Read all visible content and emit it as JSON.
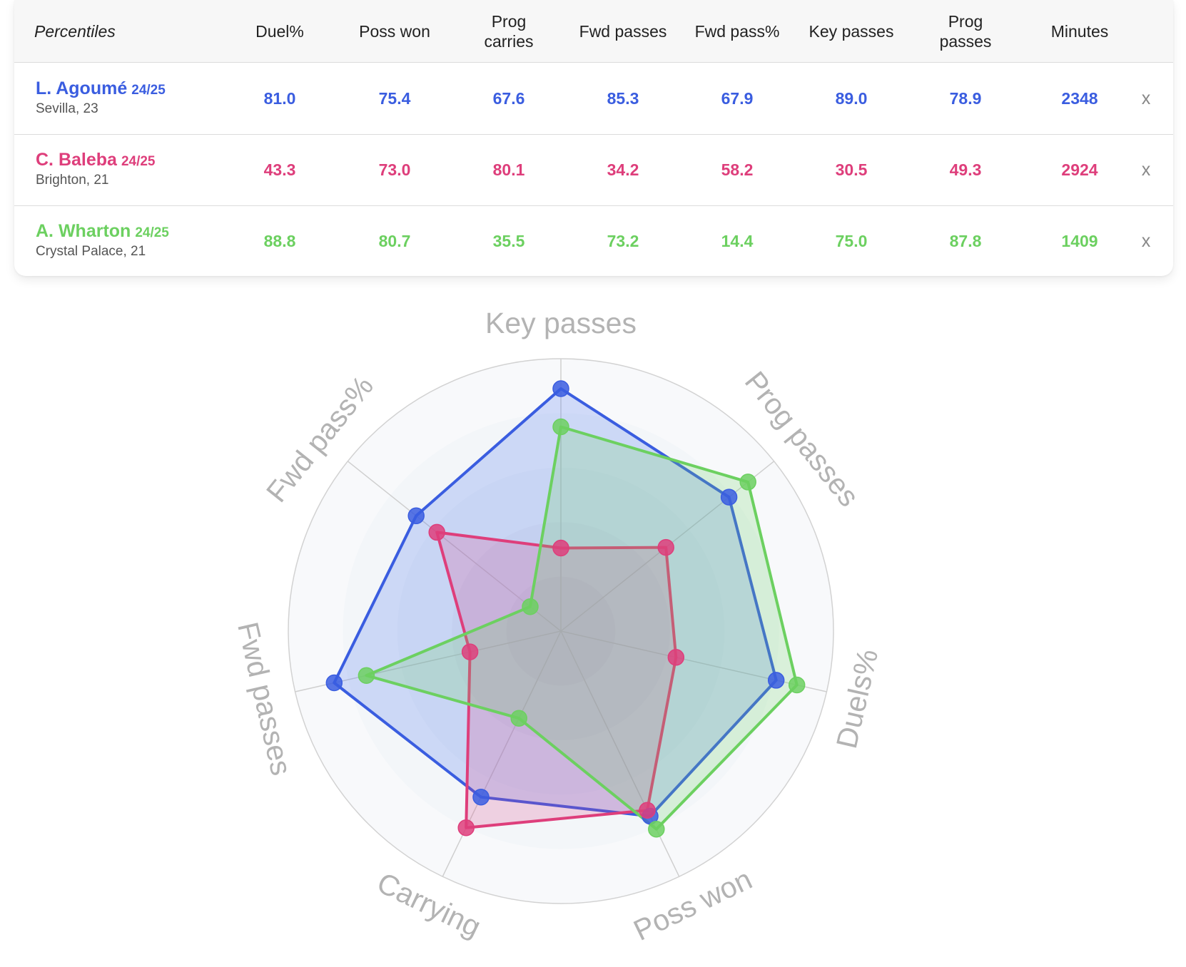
{
  "table": {
    "header": {
      "first": "Percentiles",
      "columns": [
        "Duel%",
        "Poss won",
        "Prog carries",
        "Fwd passes",
        "Fwd pass%",
        "Key passes",
        "Prog passes",
        "Minutes"
      ]
    },
    "remove_label": "x",
    "players": [
      {
        "name": "L. Agoumé",
        "season": "24/25",
        "club": "Sevilla, 23",
        "color": "#3a5de0",
        "values": [
          "81.0",
          "75.4",
          "67.6",
          "85.3",
          "67.9",
          "89.0",
          "78.9",
          "2348"
        ]
      },
      {
        "name": "C. Baleba",
        "season": "24/25",
        "club": "Brighton, 21",
        "color": "#de3e7b",
        "values": [
          "43.3",
          "73.0",
          "80.1",
          "34.2",
          "58.2",
          "30.5",
          "49.3",
          "2924"
        ]
      },
      {
        "name": "A. Wharton",
        "season": "24/25",
        "club": "Crystal Palace, 21",
        "color": "#6cd060",
        "values": [
          "88.8",
          "80.7",
          "35.5",
          "73.2",
          "14.4",
          "75.0",
          "87.8",
          "1409"
        ]
      }
    ]
  },
  "radar": {
    "axes": [
      "Key passes",
      "Prog passes",
      "Duels%",
      "Poss won",
      "Carrying",
      "Fwd passes",
      "Fwd pass%"
    ],
    "range": [
      0,
      100
    ],
    "series": [
      {
        "name": "L. Agoumé",
        "color": "#3a5de0",
        "fill": "rgba(70,110,235,0.22)",
        "values": [
          89.0,
          78.9,
          81.0,
          75.4,
          67.6,
          85.3,
          67.9
        ]
      },
      {
        "name": "C. Baleba",
        "color": "#de3e7b",
        "fill": "rgba(220,60,130,0.20)",
        "values": [
          30.5,
          49.3,
          43.3,
          73.0,
          80.1,
          34.2,
          58.2
        ]
      },
      {
        "name": "A. Wharton",
        "color": "#6cd060",
        "fill": "rgba(110,210,100,0.22)",
        "values": [
          75.0,
          87.8,
          88.8,
          80.7,
          35.5,
          73.2,
          14.4
        ]
      }
    ]
  }
}
